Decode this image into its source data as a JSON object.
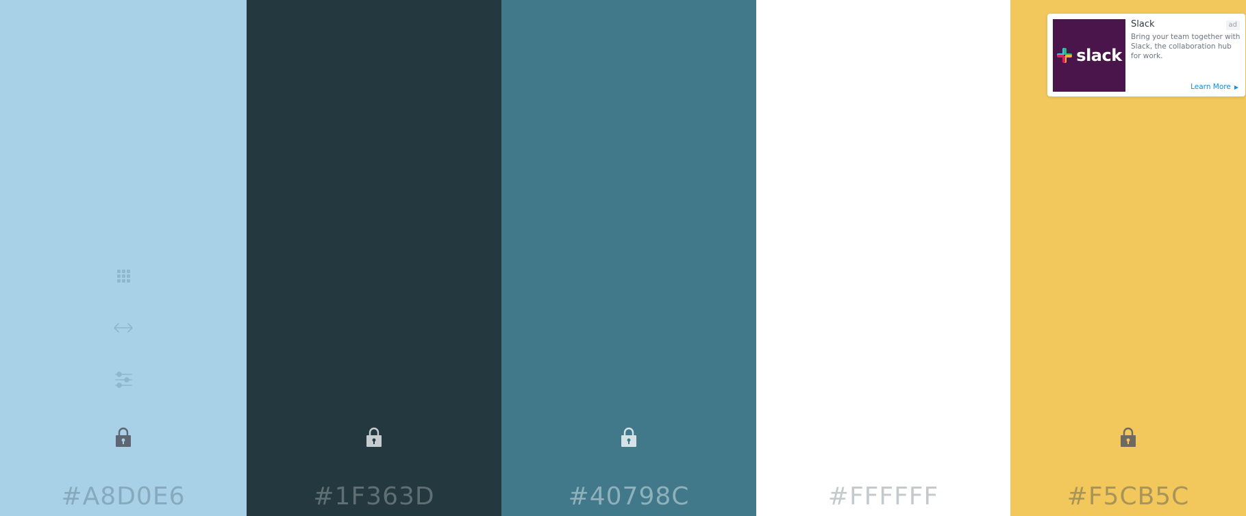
{
  "palette": {
    "swatches": [
      {
        "hex": "#A8D0E6",
        "color": "#a8d0e6",
        "text_color": "#86a9bd",
        "lock_color": "#5d6672",
        "locked": true
      },
      {
        "hex": "#1F363D",
        "color": "#23383f",
        "text_color": "#5f6f74",
        "lock_color": "#c7ccce",
        "locked": true
      },
      {
        "hex": "#40798C",
        "color": "#41798b",
        "text_color": "#8fb1bc",
        "lock_color": "#d5e2e6",
        "locked": true
      },
      {
        "hex": "#FFFFFF",
        "color": "#ffffff",
        "text_color": "#c4c9cc",
        "lock_color": "#ffffff",
        "locked": false
      },
      {
        "hex": "#F5CB5C",
        "color": "#f2c75c",
        "text_color": "#a99457",
        "lock_color": "#6f6a60",
        "locked": true
      }
    ],
    "tool_icon_color": "#8fb6cc",
    "tools": [
      {
        "name": "grid-icon"
      },
      {
        "name": "arrows-horizontal-icon"
      },
      {
        "name": "sliders-icon"
      }
    ]
  },
  "ad": {
    "title": "Slack",
    "badge": "ad",
    "text": "Bring your team together with Slack, the collaboration hub for work.",
    "cta": "Learn More",
    "logo_word": "slack",
    "logo_background": "#4a154b",
    "cta_color": "#1a8bd8"
  }
}
